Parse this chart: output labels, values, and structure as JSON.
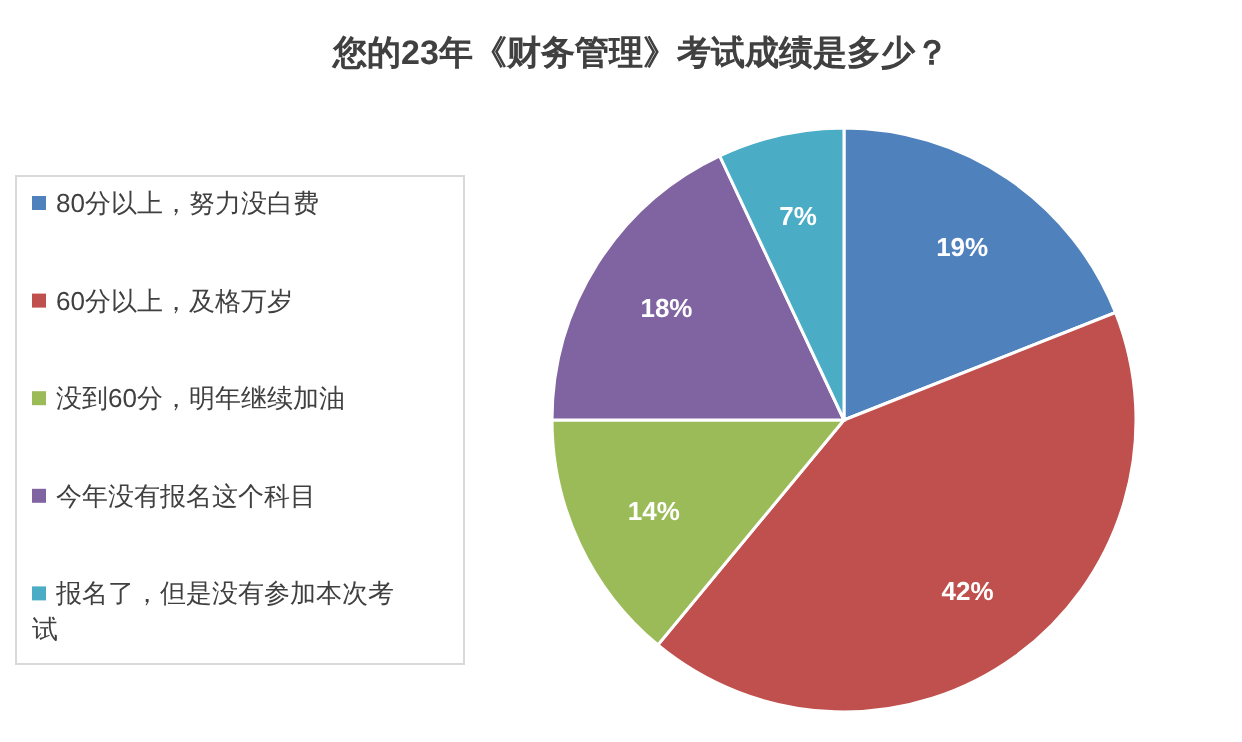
{
  "chart_data": {
    "type": "pie",
    "title": "您的23年《财务管理》考试成绩是多少？",
    "categories": [
      "80分以上，努力没白费",
      "60分以上，及格万岁",
      "没到60分，明年继续加油",
      "今年没有报名这个科目",
      "报名了，但是没有参加本次考试"
    ],
    "values": [
      19,
      42,
      14,
      18,
      7
    ],
    "colors": [
      "#4f81bd",
      "#c0504d",
      "#9bbb59",
      "#8064a2",
      "#4bacc6"
    ],
    "value_labels": [
      "19%",
      "42%",
      "14%",
      "18%",
      "7%"
    ],
    "legend": "left"
  }
}
